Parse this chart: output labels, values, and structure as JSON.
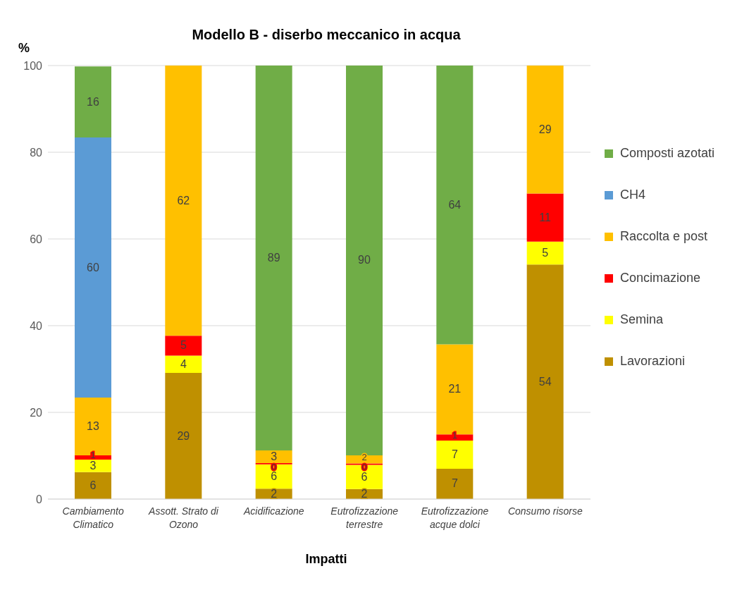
{
  "chart_data": {
    "type": "bar",
    "stacked": true,
    "title": "Modello B - diserbo meccanico in acqua",
    "xlabel": "Impatti",
    "ylabel": "%",
    "categories": [
      "Cambiamento Climatico",
      "Assott. Strato di Ozono",
      "Acidificazione",
      "Eutrofizzazione terrestre",
      "Eutrofizzazione acque dolci",
      "Consumo risorse"
    ],
    "series": [
      {
        "name": "Lavorazioni",
        "color": "#bf9000",
        "values": [
          6.2,
          29.1,
          2.4,
          2.3,
          7.0,
          54.1
        ],
        "value_labels": [
          "6",
          "29",
          "2",
          "2",
          "7",
          "54"
        ]
      },
      {
        "name": "Semina",
        "color": "#ffff00",
        "values": [
          2.9,
          4.0,
          5.6,
          5.6,
          6.5,
          5.3
        ],
        "value_labels": [
          "3",
          "4",
          "6",
          "6",
          "7",
          "5"
        ]
      },
      {
        "name": "Concimazione",
        "color": "#ff0000",
        "values": [
          1.0,
          4.6,
          0.3,
          0.3,
          1.4,
          11.1
        ],
        "value_labels": [
          "1",
          "5",
          "0",
          "0",
          "1",
          "11"
        ]
      },
      {
        "name": "Raccolta e post",
        "color": "#ffc000",
        "values": [
          13.3,
          62.3,
          2.9,
          1.9,
          20.8,
          29.5
        ],
        "value_labels": [
          "13",
          "62",
          "3",
          "2",
          "21",
          "29"
        ]
      },
      {
        "name": "CH4",
        "color": "#5b9bd5",
        "values": [
          60.0,
          null,
          null,
          null,
          null,
          null
        ],
        "value_labels": [
          "60",
          null,
          null,
          null,
          null,
          null
        ]
      },
      {
        "name": "Composti azotati",
        "color": "#70ad47",
        "values": [
          16.4,
          null,
          88.8,
          89.9,
          64.3,
          null
        ],
        "value_labels": [
          "16",
          null,
          "89",
          "90",
          "64",
          null
        ]
      }
    ],
    "ylim": [
      0,
      100
    ],
    "yticks": [
      0,
      20,
      40,
      60,
      80,
      100
    ],
    "grid": "y",
    "legend": "right"
  }
}
